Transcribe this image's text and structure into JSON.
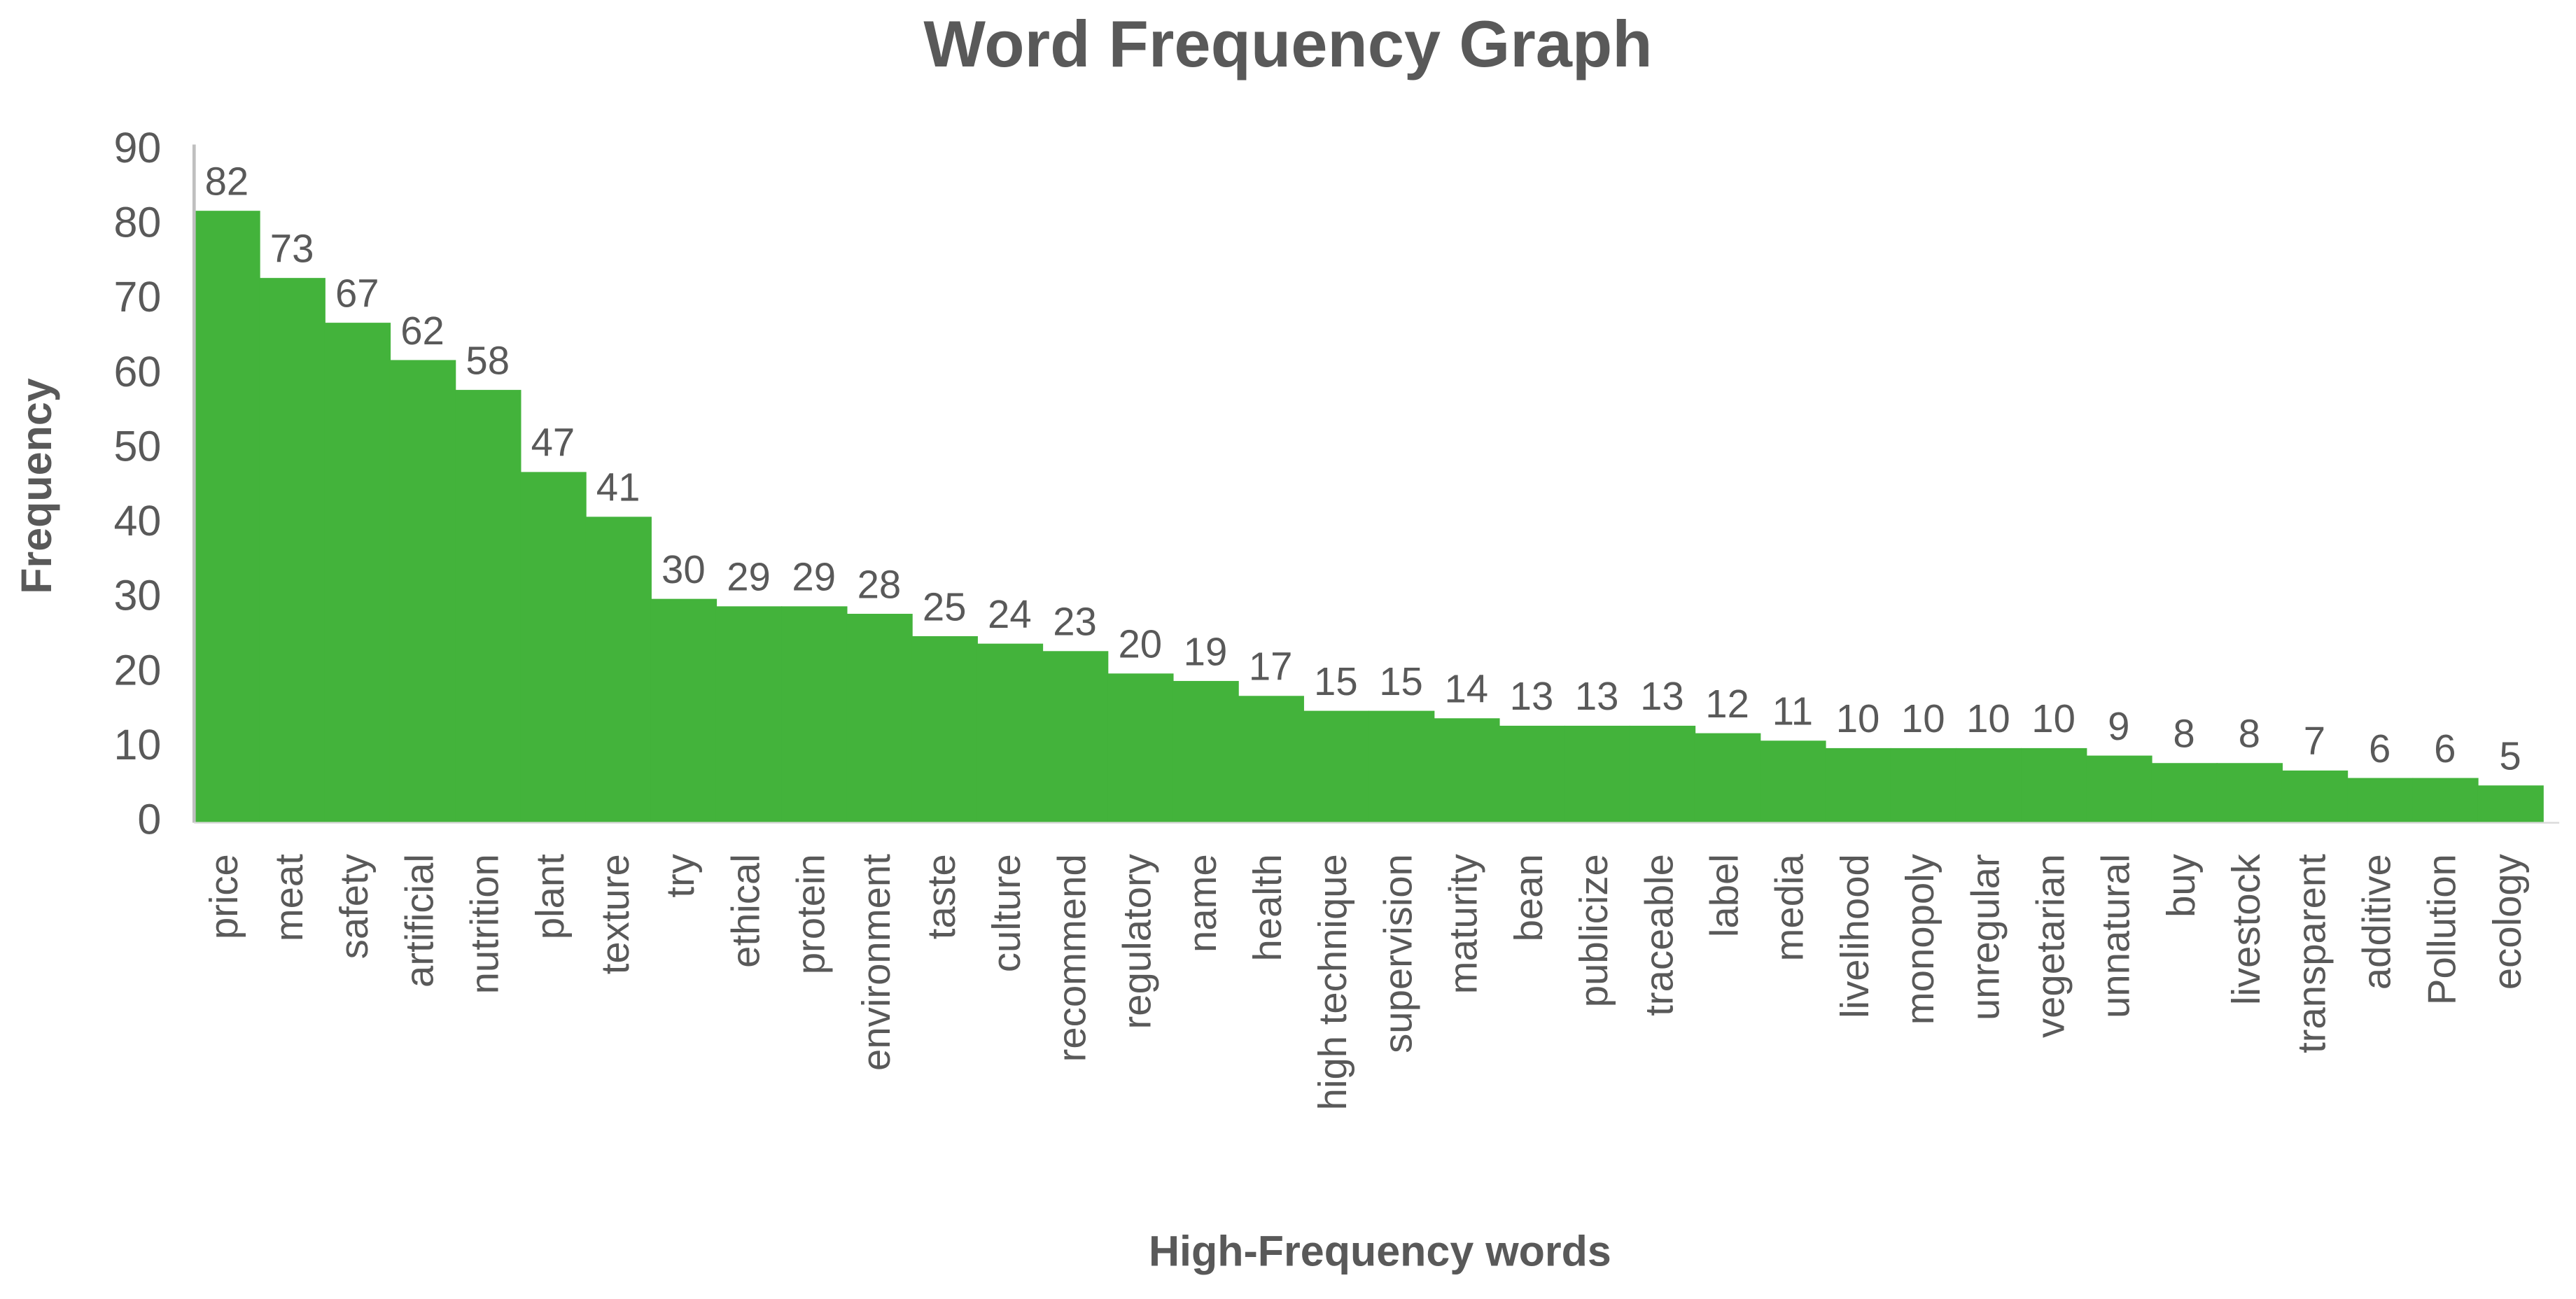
{
  "chart_data": {
    "type": "bar",
    "title": "Word Frequency Graph",
    "x_label": "High-Frequency words",
    "y_label": "Frequency",
    "categories": [
      "price",
      "meat",
      "safety",
      "artificial",
      "nutrition",
      "plant",
      "texture",
      "try",
      "ethical",
      "protein",
      "environment",
      "taste",
      "culture",
      "recommend",
      "regulatory",
      "name",
      "health",
      "high technique",
      "supervision",
      "maturity",
      "bean",
      "publicize",
      "traceable",
      "label",
      "media",
      "livelihood",
      "monopoly",
      "unregular",
      "vegetarian",
      "unnatural",
      "buy",
      "livestock",
      "transparent",
      "additive",
      "Pollution",
      "ecology"
    ],
    "values": [
      82,
      73,
      67,
      62,
      58,
      47,
      41,
      30,
      29,
      29,
      28,
      25,
      24,
      23,
      20,
      19,
      17,
      15,
      15,
      14,
      13,
      13,
      13,
      12,
      11,
      10,
      10,
      10,
      10,
      9,
      8,
      8,
      7,
      6,
      6,
      5
    ],
    "color": "#43b33b",
    "ylim": [
      0,
      90
    ],
    "yticks": [
      0,
      10,
      20,
      30,
      40,
      50,
      60,
      70,
      80,
      90
    ],
    "grid": false
  }
}
